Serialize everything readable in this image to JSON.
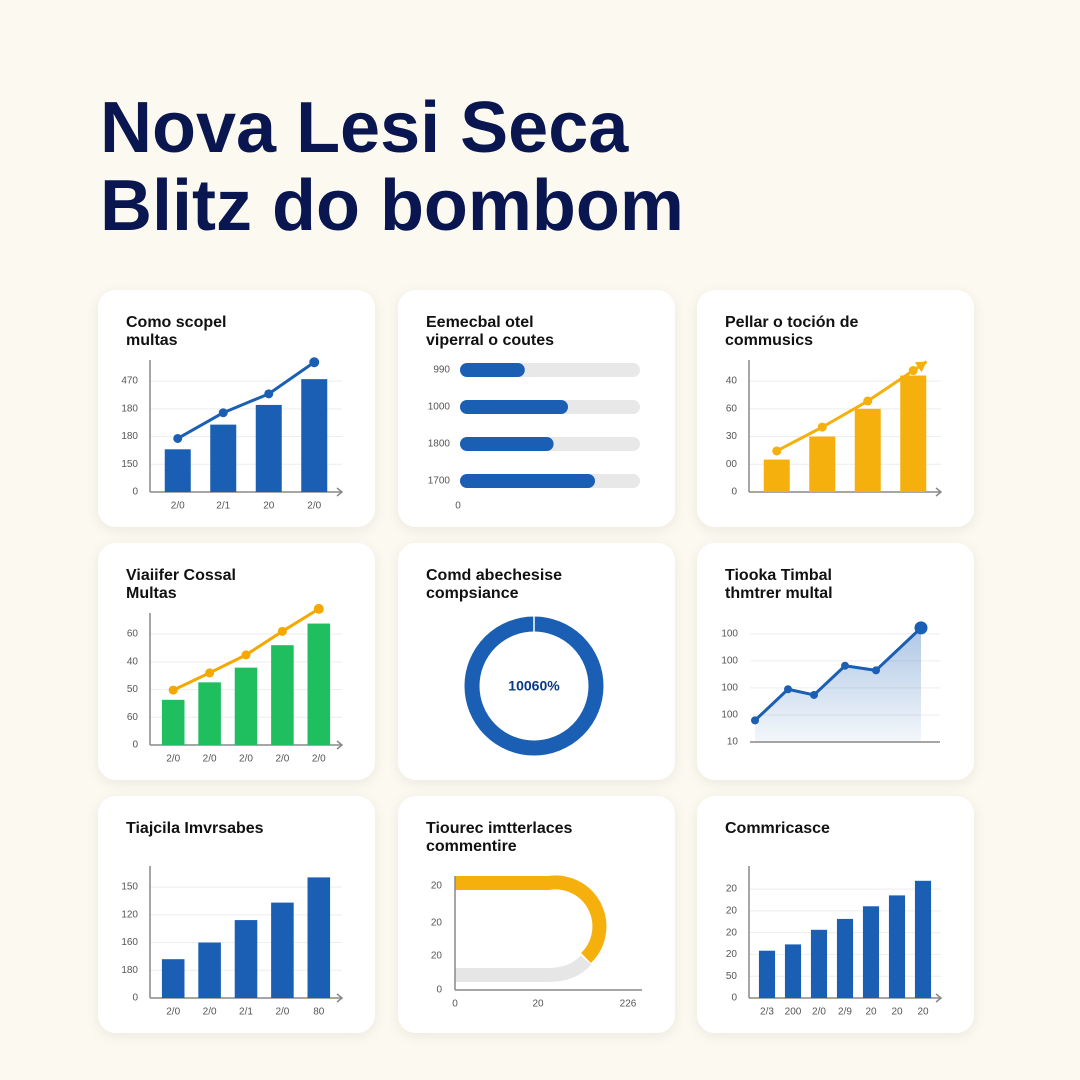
{
  "header": {
    "title": [
      "Nova Lesi Seca",
      "Blitz do bombom"
    ]
  },
  "chart_data": [
    {
      "type": "bar",
      "title": [
        "Como scopel",
        "multas"
      ],
      "categories": [
        "2/0",
        "2/1",
        "20",
        "2/0"
      ],
      "values": [
        1.54,
        2.43,
        3.14,
        4.07
      ],
      "color": "#1a5fb4",
      "line_values": [
        1.93,
        2.86,
        3.54,
        4.68
      ],
      "line_color": "#1a5fb4",
      "ylim": [
        0,
        4.4
      ],
      "yticks": [
        0,
        {
          "value": 1,
          "label": "150"
        },
        {
          "value": 2,
          "label": "180"
        },
        {
          "value": 3,
          "label": "180"
        },
        {
          "value": 4,
          "label": "470"
        }
      ],
      "grid": true
    },
    {
      "type": "hbar",
      "title": [
        "Eemecbal otel",
        "viperral o coutes"
      ],
      "categories": [
        "990",
        "1000",
        "1800",
        "1700"
      ],
      "values": [
        0.36,
        0.6,
        0.52,
        0.75
      ],
      "xlim": [
        0,
        1
      ],
      "xticks": [
        0
      ],
      "color": "#1a5fb4",
      "track_color": "#e8e8e8"
    },
    {
      "type": "bar",
      "title": [
        "Pellar o toción de",
        "commusics"
      ],
      "categories": [
        null,
        null,
        null,
        null
      ],
      "values": [
        1.17,
        2.0,
        3.0,
        4.2
      ],
      "color": "#f5b00d",
      "line_values": [
        1.48,
        2.34,
        3.28,
        4.38
      ],
      "line_color": "#f5b00d",
      "arrow": true,
      "ylim": [
        0,
        4.4
      ],
      "yticks": [
        0,
        {
          "value": 1,
          "label": "00"
        },
        {
          "value": 2,
          "label": "30"
        },
        {
          "value": 3,
          "label": "60"
        },
        {
          "value": 4,
          "label": "40"
        }
      ],
      "grid": true
    },
    {
      "type": "bar",
      "title": [
        "Viaiifer Cossal",
        "Multas"
      ],
      "categories": [
        "2/0",
        "2/0",
        "2/0",
        "2/0",
        "2/0"
      ],
      "values": [
        1.63,
        2.26,
        2.79,
        3.6,
        4.38
      ],
      "color": "#1fbf5f",
      "line_values": [
        1.98,
        2.6,
        3.25,
        4.1,
        4.91
      ],
      "line_color": "#f5a800",
      "ylim": [
        0,
        4.4
      ],
      "yticks": [
        0,
        {
          "value": 1,
          "label": "60"
        },
        {
          "value": 2,
          "label": "50"
        },
        {
          "value": 3,
          "label": "40"
        },
        {
          "value": 4,
          "label": "60"
        }
      ],
      "grid": true
    },
    {
      "type": "donut",
      "title": [
        "Comd abechesise",
        "compsiance"
      ],
      "label": "10060%",
      "color": "#1a5fb4"
    },
    {
      "type": "area",
      "title": [
        "Tiooka Timbal",
        "thmtrer multal"
      ],
      "x": [
        0.5,
        3.8,
        6.4,
        9.5,
        12.6,
        17.1
      ],
      "values": [
        0.8,
        1.95,
        1.74,
        2.82,
        2.65,
        4.22
      ],
      "xlim": [
        0,
        19
      ],
      "ylim": [
        0,
        4.4
      ],
      "yticks": [
        {
          "value": 0,
          "label": "10"
        },
        {
          "value": 1,
          "label": "100"
        },
        {
          "value": 2,
          "label": "100"
        },
        {
          "value": 3,
          "label": "100"
        },
        {
          "value": 4,
          "label": "100"
        }
      ],
      "color": "#1a5fb4",
      "grid": true
    },
    {
      "type": "bar",
      "title": [
        "Tiajcila Imvrsabes"
      ],
      "categories": [
        "2/0",
        "2/0",
        "2/1",
        "2/0",
        "80"
      ],
      "values": [
        1.4,
        2.0,
        2.81,
        3.44,
        4.35
      ],
      "color": "#1a5fb4",
      "ylim": [
        0,
        4.4
      ],
      "yticks": [
        0,
        {
          "value": 1,
          "label": "180"
        },
        {
          "value": 2,
          "label": "160"
        },
        {
          "value": 3,
          "label": "120"
        },
        {
          "value": 4,
          "label": "150"
        }
      ],
      "grid": true
    },
    {
      "type": "progress",
      "title": [
        "Tiourec imtterlaces",
        "commentire"
      ],
      "y_labels": [
        "20",
        "20",
        "20",
        "0"
      ],
      "x_labels": [
        "0",
        "20",
        "226"
      ],
      "color": "#f5b00d",
      "track_color": "#e6e6e6"
    },
    {
      "type": "bar",
      "title": [
        "Commricasce"
      ],
      "categories": [
        "2/3",
        "200",
        "2/0",
        "2/9",
        "20",
        "20",
        "20"
      ],
      "values": [
        2.17,
        2.46,
        3.13,
        3.63,
        4.21,
        4.71,
        5.38
      ],
      "color": "#1a5fb4",
      "ylim": [
        0,
        5.6
      ],
      "yticks": [
        0,
        {
          "value": 1,
          "label": "50"
        },
        {
          "value": 2,
          "label": "20"
        },
        {
          "value": 3,
          "label": "20"
        },
        {
          "value": 4,
          "label": "20"
        },
        {
          "value": 5,
          "label": "20"
        }
      ],
      "grid": true
    }
  ]
}
